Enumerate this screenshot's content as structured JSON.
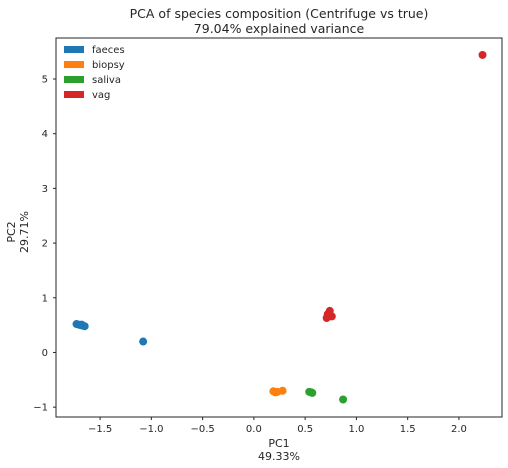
{
  "chart_data": {
    "type": "scatter",
    "title": "PCA of species composition (Centrifuge vs true)",
    "subtitle": "79.04% explained variance",
    "xlabel": "PC1",
    "xlabel_sub": "49.33%",
    "ylabel": "PC2",
    "ylabel_sub": "29.71%",
    "xlim": [
      -1.93,
      2.42
    ],
    "ylim": [
      -1.18,
      5.75
    ],
    "xticks": [
      -1.5,
      -1.0,
      -0.5,
      0.0,
      0.5,
      1.0,
      1.5,
      2.0
    ],
    "xtick_labels": [
      "−1.5",
      "−1.0",
      "−0.5",
      "0.0",
      "0.5",
      "1.0",
      "1.5",
      "2.0"
    ],
    "yticks": [
      -1,
      0,
      1,
      2,
      3,
      4,
      5
    ],
    "ytick_labels": [
      "−1",
      "0",
      "1",
      "2",
      "3",
      "4",
      "5"
    ],
    "grid": false,
    "legend_position": "top-left",
    "series": [
      {
        "name": "faeces",
        "color": "#1f77b4",
        "points": [
          {
            "x": -1.73,
            "y": 0.52
          },
          {
            "x": -1.71,
            "y": 0.51
          },
          {
            "x": -1.69,
            "y": 0.5
          },
          {
            "x": -1.68,
            "y": 0.51
          },
          {
            "x": -1.67,
            "y": 0.49
          },
          {
            "x": -1.65,
            "y": 0.48
          },
          {
            "x": -1.08,
            "y": 0.2
          }
        ]
      },
      {
        "name": "biopsy",
        "color": "#ff7f0e",
        "points": [
          {
            "x": 0.19,
            "y": -0.71
          },
          {
            "x": 0.21,
            "y": -0.73
          },
          {
            "x": 0.23,
            "y": -0.72
          },
          {
            "x": 0.28,
            "y": -0.7
          }
        ]
      },
      {
        "name": "saliva",
        "color": "#2ca02c",
        "points": [
          {
            "x": 0.54,
            "y": -0.72
          },
          {
            "x": 0.57,
            "y": -0.74
          },
          {
            "x": 0.56,
            "y": -0.73
          },
          {
            "x": 0.87,
            "y": -0.86
          }
        ]
      },
      {
        "name": "vag",
        "color": "#d62728",
        "points": [
          {
            "x": 0.71,
            "y": 0.63
          },
          {
            "x": 0.73,
            "y": 0.68
          },
          {
            "x": 0.74,
            "y": 0.76
          },
          {
            "x": 0.76,
            "y": 0.66
          },
          {
            "x": 0.72,
            "y": 0.7
          },
          {
            "x": 2.23,
            "y": 5.44
          }
        ]
      }
    ]
  }
}
